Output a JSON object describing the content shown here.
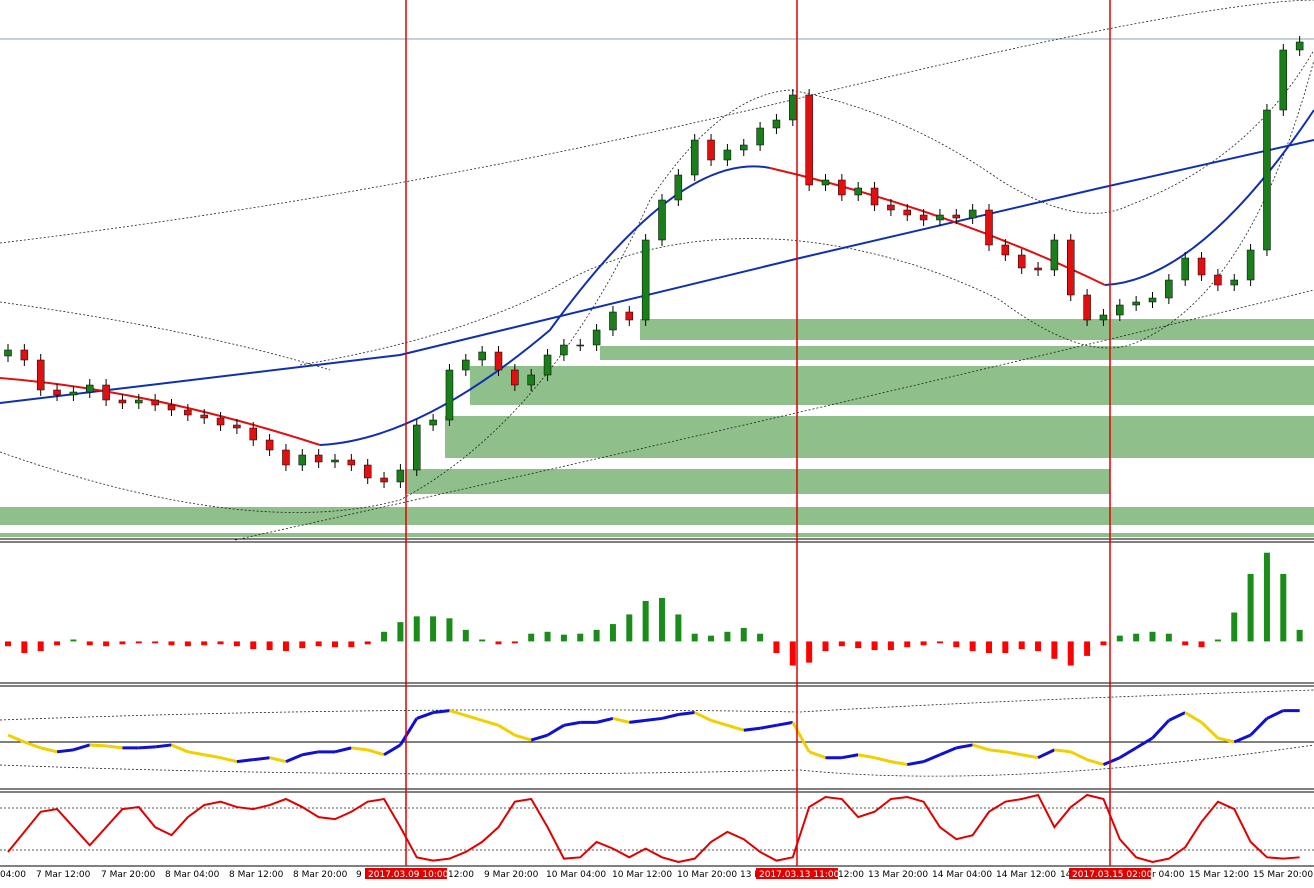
{
  "chart_data": [
    {
      "type": "candlestick",
      "up_color": "#1a7f1a",
      "down_color": "#e01010",
      "ylim": [
        0,
        540
      ],
      "candles": [
        [
          184,
          196,
          178,
          190
        ],
        [
          190,
          196,
          174,
          180
        ],
        [
          180,
          186,
          144,
          150
        ],
        [
          150,
          156,
          139,
          145
        ],
        [
          145,
          154,
          139,
          148
        ],
        [
          148,
          161,
          142,
          155
        ],
        [
          155,
          161,
          134,
          140
        ],
        [
          140,
          146,
          131,
          137
        ],
        [
          137,
          146,
          131,
          140
        ],
        [
          140,
          146,
          129,
          135
        ],
        [
          135,
          141,
          124,
          130
        ],
        [
          130,
          136,
          119,
          125
        ],
        [
          125,
          131,
          116,
          122
        ],
        [
          122,
          128,
          109,
          115
        ],
        [
          115,
          121,
          106,
          112
        ],
        [
          112,
          118,
          94,
          100
        ],
        [
          100,
          106,
          84,
          90
        ],
        [
          90,
          96,
          69,
          75
        ],
        [
          75,
          91,
          69,
          85
        ],
        [
          85,
          91,
          72,
          78
        ],
        [
          78,
          86,
          72,
          80
        ],
        [
          80,
          86,
          69,
          75
        ],
        [
          75,
          81,
          56,
          62
        ],
        [
          62,
          68,
          52,
          58
        ],
        [
          58,
          76,
          52,
          70
        ],
        [
          70,
          121,
          64,
          115
        ],
        [
          115,
          126,
          109,
          120
        ],
        [
          120,
          176,
          114,
          170
        ],
        [
          170,
          186,
          164,
          180
        ],
        [
          180,
          194,
          174,
          188
        ],
        [
          188,
          194,
          164,
          170
        ],
        [
          170,
          176,
          149,
          155
        ],
        [
          155,
          171,
          149,
          165
        ],
        [
          165,
          191,
          159,
          185
        ],
        [
          185,
          201,
          179,
          195
        ],
        [
          195,
          201,
          189,
          195
        ],
        [
          195,
          216,
          189,
          210
        ],
        [
          210,
          234,
          204,
          228
        ],
        [
          228,
          234,
          214,
          220
        ],
        [
          220,
          306,
          214,
          300
        ],
        [
          300,
          346,
          294,
          340
        ],
        [
          340,
          371,
          334,
          365
        ],
        [
          365,
          406,
          359,
          400
        ],
        [
          400,
          406,
          374,
          380
        ],
        [
          380,
          396,
          374,
          390
        ],
        [
          390,
          401,
          384,
          395
        ],
        [
          395,
          418,
          389,
          412
        ],
        [
          412,
          426,
          406,
          420
        ],
        [
          420,
          451,
          414,
          445
        ],
        [
          445,
          451,
          349,
          355
        ],
        [
          355,
          366,
          349,
          360
        ],
        [
          360,
          366,
          339,
          345
        ],
        [
          345,
          358,
          339,
          352
        ],
        [
          352,
          358,
          329,
          335
        ],
        [
          335,
          341,
          324,
          330
        ],
        [
          330,
          336,
          319,
          325
        ],
        [
          325,
          331,
          314,
          320
        ],
        [
          320,
          331,
          314,
          325
        ],
        [
          325,
          331,
          316,
          322
        ],
        [
          322,
          336,
          316,
          330
        ],
        [
          330,
          336,
          289,
          295
        ],
        [
          295,
          301,
          279,
          285
        ],
        [
          285,
          291,
          266,
          272
        ],
        [
          272,
          278,
          264,
          270
        ],
        [
          270,
          306,
          264,
          300
        ],
        [
          300,
          306,
          239,
          245
        ],
        [
          245,
          251,
          214,
          220
        ],
        [
          220,
          231,
          214,
          225
        ],
        [
          225,
          241,
          219,
          235
        ],
        [
          235,
          244,
          229,
          238
        ],
        [
          238,
          248,
          232,
          242
        ],
        [
          242,
          266,
          236,
          260
        ],
        [
          260,
          288,
          254,
          282
        ],
        [
          282,
          288,
          259,
          265
        ],
        [
          265,
          271,
          249,
          255
        ],
        [
          255,
          266,
          249,
          260
        ],
        [
          260,
          296,
          254,
          290
        ],
        [
          290,
          436,
          284,
          430
        ],
        [
          430,
          496,
          424,
          490
        ],
        [
          490,
          504,
          484,
          498
        ]
      ]
    },
    {
      "type": "bar",
      "up_color": "#1a8c1a",
      "down_color": "#ff0000",
      "ylim": [
        -40,
        100
      ],
      "values": [
        -5,
        -12,
        -10,
        -4,
        2,
        -4,
        -5,
        -3,
        -2,
        -2,
        -4,
        -5,
        -4,
        -3,
        -5,
        -8,
        -9,
        -10,
        -7,
        -5,
        -6,
        -6,
        -3,
        10,
        20,
        26,
        26,
        24,
        12,
        2,
        -3,
        -2,
        8,
        10,
        7,
        8,
        12,
        18,
        28,
        42,
        45,
        28,
        8,
        6,
        10,
        14,
        8,
        -12,
        -25,
        -22,
        -10,
        -5,
        -7,
        -9,
        -9,
        -6,
        -4,
        -2,
        -6,
        -10,
        -12,
        -12,
        -8,
        -10,
        -18,
        -25,
        -15,
        -4,
        6,
        8,
        10,
        8,
        -4,
        -6,
        2,
        30,
        70,
        92,
        70,
        12
      ]
    },
    {
      "type": "line",
      "up_color": "#1010d0",
      "down_color": "#f0d000",
      "ylim": [
        -55,
        55
      ],
      "values": [
        7,
        0,
        -6,
        -10,
        -8,
        -3,
        -4,
        -6,
        -6,
        -5,
        -3,
        -10,
        -13,
        -16,
        -20,
        -18,
        -16,
        -20,
        -13,
        -10,
        -10,
        -6,
        -8,
        -13,
        -3,
        24,
        30,
        32,
        27,
        22,
        17,
        7,
        2,
        7,
        17,
        20,
        20,
        24,
        20,
        22,
        24,
        28,
        30,
        22,
        17,
        12,
        14,
        17,
        20,
        -10,
        -16,
        -16,
        -13,
        -16,
        -20,
        -23,
        -20,
        -13,
        -6,
        -3,
        -8,
        -10,
        -13,
        -16,
        -8,
        -10,
        -18,
        -23,
        -16,
        -6,
        4,
        22,
        30,
        20,
        4,
        0,
        7,
        24,
        32,
        32
      ]
    },
    {
      "type": "line",
      "color": "#e00000",
      "ylim": [
        0,
        100
      ],
      "values": [
        85,
        55,
        25,
        21,
        48,
        75,
        48,
        21,
        18,
        48,
        60,
        33,
        15,
        10,
        18,
        21,
        15,
        6,
        18,
        33,
        36,
        25,
        10,
        6,
        48,
        93,
        98,
        95,
        85,
        70,
        48,
        10,
        6,
        48,
        95,
        93,
        70,
        80,
        93,
        80,
        93,
        100,
        95,
        70,
        55,
        66,
        85,
        98,
        93,
        18,
        3,
        6,
        33,
        25,
        6,
        3,
        10,
        48,
        66,
        60,
        25,
        10,
        6,
        0,
        48,
        18,
        0,
        6,
        66,
        93,
        100,
        95,
        78,
        40,
        10,
        21,
        70,
        93,
        95,
        93
      ]
    }
  ],
  "axis": {
    "labels": [
      "04:00",
      "7 Mar 12:00",
      "7 Mar 20:00",
      "8 Mar 04:00",
      "8 Mar 12:00",
      "8 Mar 20:00",
      "9",
      "12:00",
      "9 Mar 20:00",
      "10 Mar 04:00",
      "10 Mar 12:00",
      "10 Mar 20:00",
      "13 M",
      "12:00",
      "13 Mar 20:00",
      "14 Mar 04:00",
      "14 Mar 12:00",
      "14",
      "r 04:00",
      "15 Mar 12:00",
      "15 Mar 20:00"
    ],
    "markers": [
      "2017.03.09 10:00",
      "2017.03.13 11:00",
      "2017.03.15 02:00"
    ]
  }
}
